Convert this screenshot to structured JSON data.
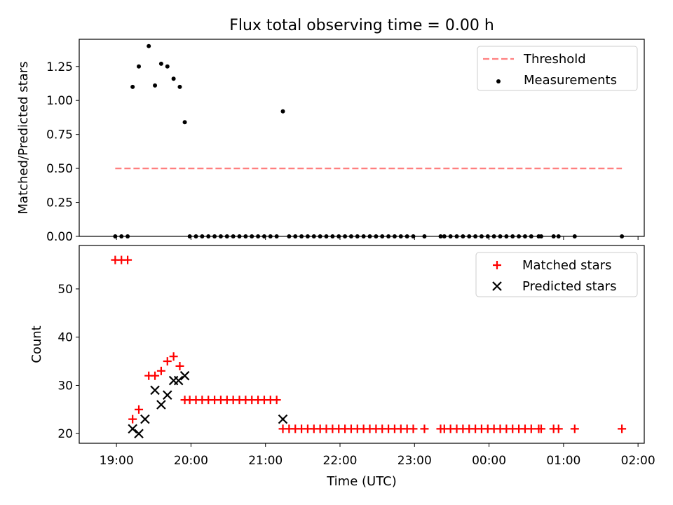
{
  "figure_title": "Flux total observing time = 0.00 h",
  "colors": {
    "threshold": "#ff7f7f",
    "measurements": "#000000",
    "matched": "#ff0000",
    "predicted": "#000000"
  },
  "chart_data": [
    {
      "type": "scatter",
      "title": "Flux total observing time = 0.00 h",
      "ylabel": "Matched/Predicted stars",
      "xlabel": "",
      "xlim": [
        "18:30",
        "02:05"
      ],
      "ylim": [
        0,
        1.45
      ],
      "y_ticks": [
        0.0,
        0.25,
        0.5,
        0.75,
        1.0,
        1.25
      ],
      "y_tick_labels": [
        "0.00",
        "0.25",
        "0.50",
        "0.75",
        "1.00",
        "1.25"
      ],
      "legend_position": "top-right",
      "series": [
        {
          "name": "Threshold",
          "kind": "dashed-line",
          "x": [
            "18:59",
            "01:47"
          ],
          "y": [
            0.5,
            0.5
          ]
        },
        {
          "name": "Measurements",
          "kind": "dot",
          "x": [
            "18:59",
            "19:04",
            "19:09",
            "19:13",
            "19:18",
            "19:26",
            "19:31",
            "19:36",
            "19:41",
            "19:46",
            "19:51",
            "19:55",
            "19:59",
            "20:04",
            "20:09",
            "20:14",
            "20:19",
            "20:24",
            "20:29",
            "20:34",
            "20:39",
            "20:44",
            "20:49",
            "20:54",
            "20:59",
            "21:04",
            "21:09",
            "21:14",
            "21:19",
            "21:24",
            "21:29",
            "21:34",
            "21:39",
            "21:44",
            "21:49",
            "21:54",
            "21:59",
            "22:04",
            "22:09",
            "22:14",
            "22:19",
            "22:24",
            "22:29",
            "22:34",
            "22:39",
            "22:44",
            "22:49",
            "22:54",
            "22:59",
            "23:08",
            "23:21",
            "23:24",
            "23:29",
            "23:34",
            "23:39",
            "23:44",
            "23:49",
            "23:54",
            "23:59",
            "00:04",
            "00:09",
            "00:14",
            "00:19",
            "00:24",
            "00:29",
            "00:34",
            "00:40",
            "00:42",
            "00:52",
            "00:56",
            "01:09",
            "01:47"
          ],
          "y": [
            0,
            0,
            0,
            1.1,
            1.25,
            1.4,
            1.11,
            1.27,
            1.25,
            1.16,
            1.1,
            0.84,
            0,
            0,
            0,
            0,
            0,
            0,
            0,
            0,
            0,
            0,
            0,
            0,
            0,
            0,
            0,
            0.92,
            0,
            0,
            0,
            0,
            0,
            0,
            0,
            0,
            0,
            0,
            0,
            0,
            0,
            0,
            0,
            0,
            0,
            0,
            0,
            0,
            0,
            0,
            0,
            0,
            0,
            0,
            0,
            0,
            0,
            0,
            0,
            0,
            0,
            0,
            0,
            0,
            0,
            0,
            0,
            0,
            0,
            0,
            0,
            0
          ]
        }
      ]
    },
    {
      "type": "scatter",
      "title": "",
      "xlabel": "Time (UTC)",
      "ylabel": "Count",
      "xlim": [
        "18:30",
        "02:05"
      ],
      "ylim": [
        18,
        59
      ],
      "x_ticks": [
        "19:00",
        "20:00",
        "21:00",
        "22:00",
        "23:00",
        "00:00",
        "01:00",
        "02:00"
      ],
      "y_ticks": [
        20,
        30,
        40,
        50
      ],
      "y_tick_labels": [
        "20",
        "30",
        "40",
        "50"
      ],
      "legend_position": "top-right",
      "series": [
        {
          "name": "Matched stars",
          "marker": "plus",
          "x": [
            "18:59",
            "19:04",
            "19:09",
            "19:13",
            "19:18",
            "19:26",
            "19:31",
            "19:36",
            "19:41",
            "19:46",
            "19:51",
            "19:55",
            "19:59",
            "20:04",
            "20:09",
            "20:14",
            "20:19",
            "20:24",
            "20:29",
            "20:34",
            "20:39",
            "20:44",
            "20:49",
            "20:54",
            "20:59",
            "21:04",
            "21:09",
            "21:14",
            "21:19",
            "21:24",
            "21:29",
            "21:34",
            "21:39",
            "21:44",
            "21:49",
            "21:54",
            "21:59",
            "22:04",
            "22:09",
            "22:14",
            "22:19",
            "22:24",
            "22:29",
            "22:34",
            "22:39",
            "22:44",
            "22:49",
            "22:54",
            "22:59",
            "23:08",
            "23:21",
            "23:24",
            "23:29",
            "23:34",
            "23:39",
            "23:44",
            "23:49",
            "23:54",
            "23:59",
            "00:04",
            "00:09",
            "00:14",
            "00:19",
            "00:24",
            "00:29",
            "00:34",
            "00:40",
            "00:42",
            "00:52",
            "00:56",
            "01:09",
            "01:47"
          ],
          "y": [
            56,
            56,
            56,
            23,
            25,
            32,
            32,
            33,
            35,
            36,
            34,
            27,
            27,
            27,
            27,
            27,
            27,
            27,
            27,
            27,
            27,
            27,
            27,
            27,
            27,
            27,
            27,
            21,
            21,
            21,
            21,
            21,
            21,
            21,
            21,
            21,
            21,
            21,
            21,
            21,
            21,
            21,
            21,
            21,
            21,
            21,
            21,
            21,
            21,
            21,
            21,
            21,
            21,
            21,
            21,
            21,
            21,
            21,
            21,
            21,
            21,
            21,
            21,
            21,
            21,
            21,
            21,
            21,
            21,
            21,
            21,
            21
          ]
        },
        {
          "name": "Predicted stars",
          "marker": "x",
          "x": [
            "19:13",
            "19:18",
            "19:23",
            "19:31",
            "19:36",
            "19:41",
            "19:46",
            "19:50",
            "19:55",
            "21:14"
          ],
          "y": [
            21,
            20,
            23,
            29,
            26,
            28,
            31,
            31,
            32,
            23
          ]
        }
      ]
    }
  ]
}
